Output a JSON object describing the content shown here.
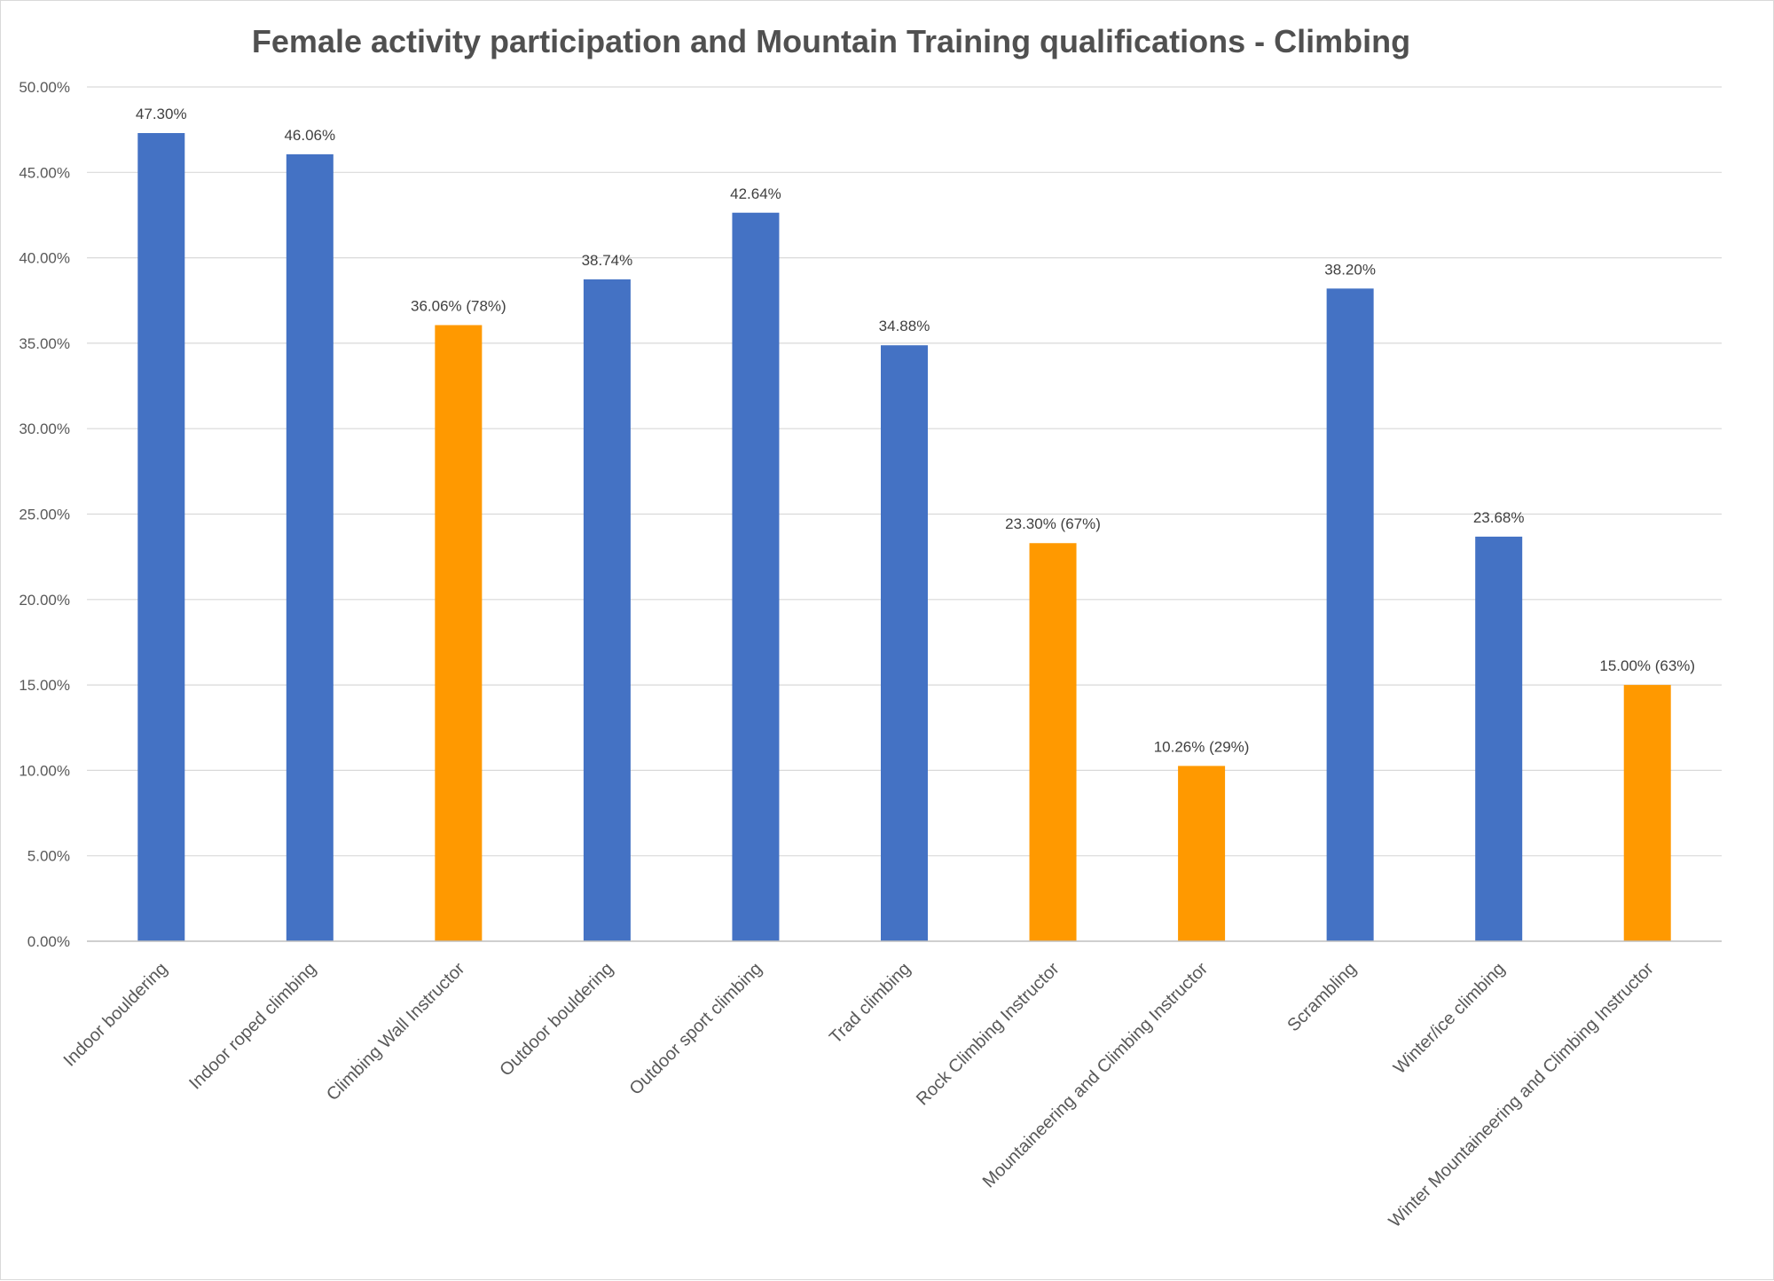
{
  "chart_data": {
    "type": "bar",
    "title": "Female activity participation and Mountain Training qualifications - Climbing",
    "xlabel": "",
    "ylabel": "",
    "ylim": [
      0,
      50
    ],
    "yticks": [
      "0.00%",
      "5.00%",
      "10.00%",
      "15.00%",
      "20.00%",
      "25.00%",
      "30.00%",
      "35.00%",
      "40.00%",
      "45.00%",
      "50.00%"
    ],
    "grid": true,
    "legend": "none",
    "colors": {
      "activity": "#4472c4",
      "qualification": "#ff9900"
    },
    "categories": [
      "Indoor bouldering",
      "Indoor roped climbing",
      "Climbing Wall Instructor",
      "Outdoor bouldering",
      "Outdoor sport climbing",
      "Trad climbing",
      "Rock Climbing Instructor",
      "Mountaineering and Climbing Instructor",
      "Scrambling",
      "Winter/ice climbing",
      "Winter Mountaineering and Climbing Instructor"
    ],
    "values": [
      47.3,
      46.06,
      36.06,
      38.74,
      42.64,
      34.88,
      23.3,
      10.26,
      38.2,
      23.68,
      15.0
    ],
    "bar_kind": [
      "activity",
      "activity",
      "qualification",
      "activity",
      "activity",
      "activity",
      "qualification",
      "qualification",
      "activity",
      "activity",
      "qualification"
    ],
    "data_labels": [
      "47.30%",
      "46.06%",
      "36.06% (78%)",
      "38.74%",
      "42.64%",
      "34.88%",
      "23.30% (67%)",
      "10.26% (29%)",
      "38.20%",
      "23.68%",
      "15.00% (63%)"
    ]
  }
}
